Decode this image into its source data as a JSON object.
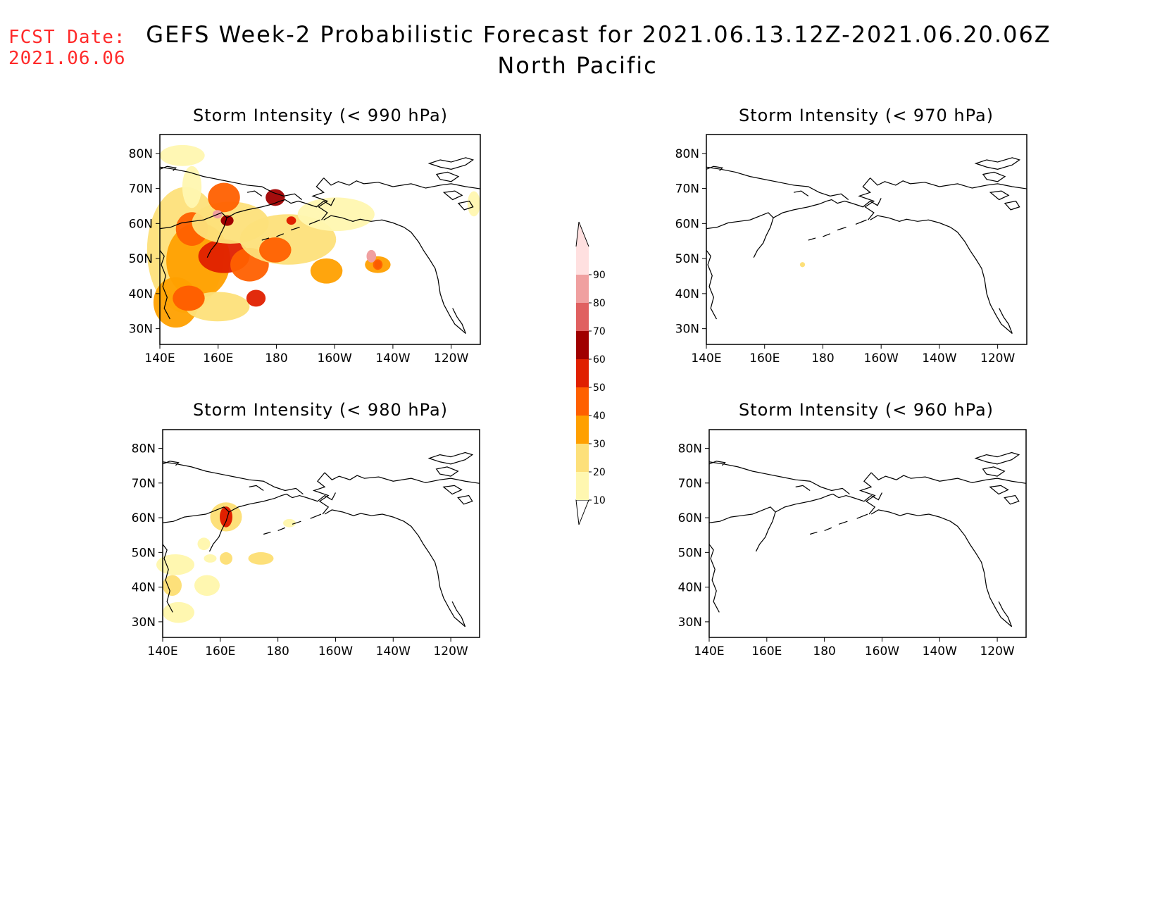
{
  "header": {
    "fcst_label": "FCST Date:",
    "fcst_date": "2021.06.06",
    "title_line1": "GEFS Week-2 Probabilistic Forecast for 2021.06.13.12Z-2021.06.20.06Z",
    "title_line2": "North Pacific"
  },
  "panels": [
    {
      "title": "Storm Intensity (< 990 hPa)"
    },
    {
      "title": "Storm Intensity (< 970 hPa)"
    },
    {
      "title": "Storm Intensity (< 980 hPa)"
    },
    {
      "title": "Storm Intensity (< 960 hPa)"
    }
  ],
  "axes": {
    "lat_labels": [
      "80N",
      "70N",
      "60N",
      "50N",
      "40N",
      "30N"
    ],
    "lon_labels": [
      "140E",
      "160E",
      "180",
      "160W",
      "140W",
      "120W"
    ]
  },
  "colorbar": {
    "levels": [
      "10",
      "20",
      "30",
      "40",
      "50",
      "60",
      "70",
      "80",
      "90"
    ],
    "colors": [
      "#fff7b0",
      "#fde07a",
      "#ffa000",
      "#ff6000",
      "#e02000",
      "#a00000",
      "#e06060",
      "#f0a0a0",
      "#ffe0e0"
    ]
  },
  "colors": {
    "fcst_text": "#ff2a2a",
    "coast": "#000000"
  }
}
